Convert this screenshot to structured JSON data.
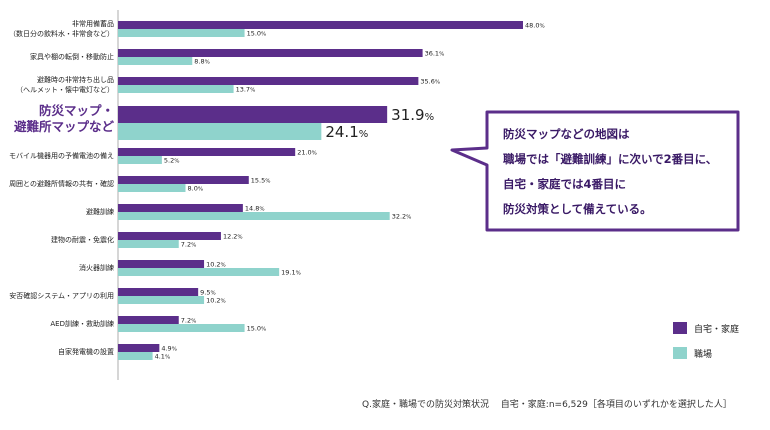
{
  "chart_data": {
    "type": "bar",
    "orientation": "horizontal",
    "categories": [
      [
        "非常用備蓄品",
        "（数日分の飲料水・非常食など）"
      ],
      [
        "家具や棚の転倒・移動防止"
      ],
      [
        "避難時の非常持ち出し品",
        "（ヘルメット・懐中電灯など）"
      ],
      [
        "防災マップ・",
        "避難所マップなど"
      ],
      [
        "モバイル機器用の予備電池の備え"
      ],
      [
        "周囲との避難所情報の共有・確認"
      ],
      [
        "避難訓練"
      ],
      [
        "建物の耐震・免震化"
      ],
      [
        "消火器訓練"
      ],
      [
        "安否確認システム・アプリの利用"
      ],
      [
        "AED訓練・救助訓練"
      ],
      [
        "自家発電機の設置"
      ]
    ],
    "highlight_index": 3,
    "series": [
      {
        "name": "自宅・家庭",
        "color": "#5b2e8a",
        "values": [
          48.0,
          36.1,
          35.6,
          31.9,
          21.0,
          15.5,
          14.8,
          12.2,
          10.2,
          9.5,
          7.2,
          4.9
        ]
      },
      {
        "name": "職場",
        "color": "#8fd3cc",
        "values": [
          15.0,
          8.8,
          13.7,
          24.1,
          5.2,
          8.0,
          32.2,
          7.2,
          19.1,
          10.2,
          15.0,
          4.1
        ]
      }
    ],
    "value_suffix": "%",
    "xlim": [
      0,
      50
    ]
  },
  "callout": {
    "lines": [
      "防災マップなどの地図は",
      "職場では「避難訓練」に次いで2番目に、",
      "自宅・家庭では4番目に",
      "防災対策として備えている。"
    ]
  },
  "legend": {
    "home": "自宅・家庭",
    "work": "職場"
  },
  "footnote": "Q.家庭・職場での防災対策状況　 自宅・家庭:n=6,529［各項目のいずれかを選択した人］",
  "colors": {
    "accent": "#5b2e8a",
    "secondary": "#8fd3cc",
    "callout_border": "#5b2e8a"
  }
}
